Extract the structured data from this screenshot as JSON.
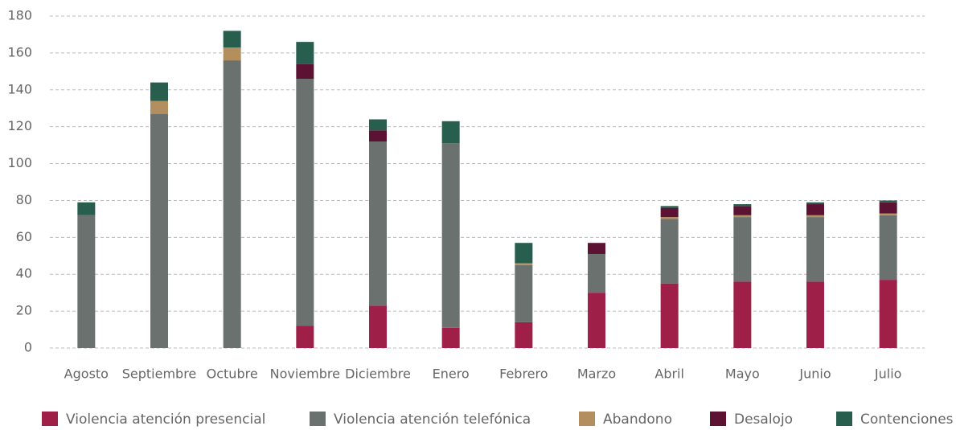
{
  "chart_data": {
    "type": "stacked_bar",
    "categories": [
      "Agosto",
      "Septiembre",
      "Octubre",
      "Noviembre",
      "Diciembre",
      "Enero",
      "Febrero",
      "Marzo",
      "Abril",
      "Mayo",
      "Junio",
      "Julio"
    ],
    "series": [
      {
        "name": "Violencia atención presencial",
        "color": "#9e1f47",
        "values": [
          0,
          0,
          0,
          12,
          23,
          11,
          14,
          30,
          35,
          36,
          36,
          37
        ]
      },
      {
        "name": "Violencia atención telefónica",
        "color": "#6b716f",
        "values": [
          72,
          127,
          156,
          134,
          89,
          100,
          31,
          21,
          35,
          35,
          35,
          35
        ]
      },
      {
        "name": "Abandono",
        "color": "#b38f5f",
        "values": [
          0,
          7,
          7,
          0,
          0,
          0,
          1,
          0,
          1,
          1,
          1,
          1
        ]
      },
      {
        "name": "Desalojo",
        "color": "#5c1232",
        "values": [
          0,
          0,
          0,
          8,
          6,
          0,
          0,
          6,
          5,
          5,
          6,
          6
        ]
      },
      {
        "name": "Contenciones",
        "color": "#285e4e",
        "values": [
          7,
          10,
          9,
          12,
          6,
          12,
          11,
          0,
          1,
          1,
          1,
          1
        ]
      }
    ],
    "ylim": [
      0,
      180
    ],
    "yticks": [
      0,
      20,
      40,
      60,
      80,
      100,
      120,
      140,
      160,
      180
    ],
    "grid": true,
    "legend": "bottom"
  }
}
